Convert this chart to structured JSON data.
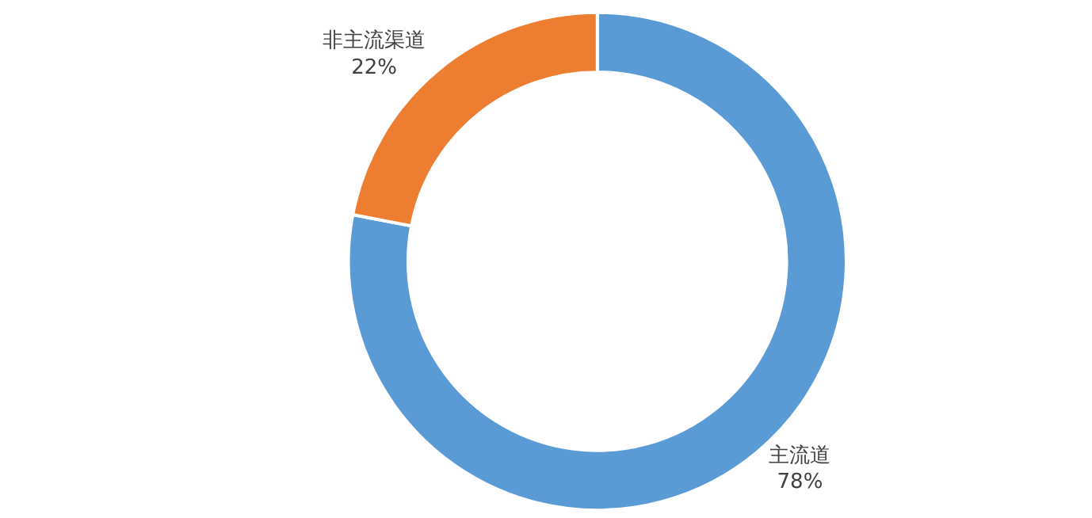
{
  "chart_data": {
    "type": "donut",
    "categories": [
      "主流道",
      "非主流渠道"
    ],
    "values": [
      78,
      22
    ],
    "colors": [
      "#5b9bd5",
      "#ed7d31"
    ],
    "value_labels": [
      "78%",
      "22%"
    ],
    "legend": false
  }
}
